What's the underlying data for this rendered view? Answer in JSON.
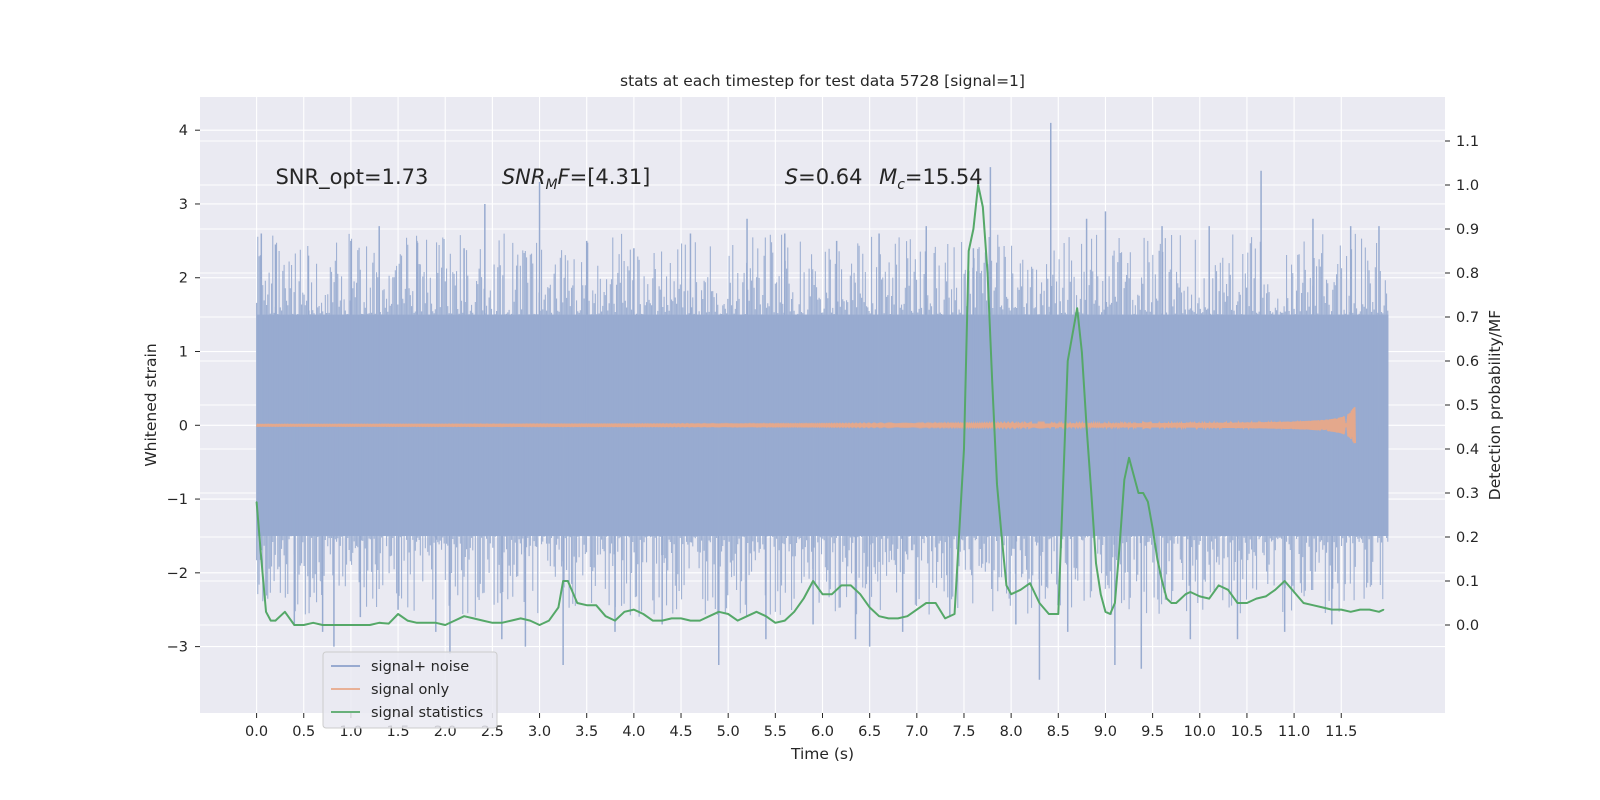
{
  "chart_data": {
    "type": "line",
    "title": "stats at each timestep for test data 5728 [signal=1]",
    "xlabel": "Time (s)",
    "ylabel": "Whitened strain",
    "y2label": "Detection probability/MF",
    "xlim": [
      -0.6,
      12.6
    ],
    "ylim": [
      -3.9,
      4.45
    ],
    "y2lim": [
      -0.2,
      1.2
    ],
    "xticks": [
      0.0,
      0.5,
      1.0,
      1.5,
      2.0,
      2.5,
      3.0,
      3.5,
      4.0,
      4.5,
      5.0,
      5.5,
      6.0,
      6.5,
      7.0,
      7.5,
      8.0,
      8.5,
      9.0,
      9.5,
      10.0,
      10.5,
      11.0,
      11.5
    ],
    "xtick_labels": [
      "0.0",
      "0.5",
      "1.0",
      "1.5",
      "2.0",
      "2.5",
      "3.0",
      "3.5",
      "4.0",
      "4.5",
      "5.0",
      "5.5",
      "6.0",
      "6.5",
      "7.0",
      "7.5",
      "8.0",
      "8.5",
      "9.0",
      "9.5",
      "10.0",
      "10.5",
      "11.0",
      "11.5"
    ],
    "yticks": [
      -3,
      -2,
      -1,
      0,
      1,
      2,
      3,
      4
    ],
    "ytick_labels": [
      "−3",
      "−2",
      "−1",
      "0",
      "1",
      "2",
      "3",
      "4"
    ],
    "y2ticks": [
      0.0,
      0.1,
      0.2,
      0.3,
      0.4,
      0.5,
      0.6,
      0.7,
      0.8,
      0.9,
      1.0,
      1.1
    ],
    "y2tick_labels": [
      "0.0",
      "0.1",
      "0.2",
      "0.3",
      "0.4",
      "0.5",
      "0.6",
      "0.7",
      "0.8",
      "0.9",
      "1.0",
      "1.1"
    ],
    "annotations": [
      {
        "parts": [
          {
            "t": "SNR_opt=1.73",
            "s": "normal"
          }
        ],
        "x": 0.2,
        "y2": 1.0
      },
      {
        "parts": [
          {
            "t": "SNR",
            "s": "italic"
          },
          {
            "t": "M",
            "s": "sub-italic"
          },
          {
            "t": "F",
            "s": "italic"
          },
          {
            "t": "=[4.31]",
            "s": "normal"
          }
        ],
        "x": 2.6,
        "y2": 1.0
      },
      {
        "parts": [
          {
            "t": "S",
            "s": "italic"
          },
          {
            "t": "=0.64",
            "s": "normal"
          }
        ],
        "x": 5.6,
        "y2": 1.0
      },
      {
        "parts": [
          {
            "t": "M",
            "s": "italic"
          },
          {
            "t": "c",
            "s": "sub-italic"
          },
          {
            "t": "=15.54",
            "s": "normal"
          }
        ],
        "x": 6.6,
        "y2": 1.0
      }
    ],
    "legend": {
      "location": "lower-left",
      "entries": [
        {
          "label": "signal+ noise",
          "color": "#8da0cb"
        },
        {
          "label": "signal only",
          "color": "#e8a888"
        },
        {
          "label": "signal statistics",
          "color": "#55a868"
        }
      ]
    },
    "series": [
      {
        "name": "signal+ noise",
        "axis": "left",
        "color": "#98abd0",
        "kind": "noise",
        "x_range": [
          0.0,
          12.0
        ],
        "core_band": [
          -1.5,
          1.5
        ],
        "spikes": [
          {
            "x": 0.05,
            "y": 2.6
          },
          {
            "x": 0.2,
            "y": 2.45
          },
          {
            "x": 0.4,
            "y": -2.7
          },
          {
            "x": 0.55,
            "y": 2.3
          },
          {
            "x": 0.7,
            "y": -2.8
          },
          {
            "x": 0.82,
            "y": -3.0
          },
          {
            "x": 1.0,
            "y": 2.5
          },
          {
            "x": 1.1,
            "y": -2.6
          },
          {
            "x": 1.3,
            "y": 2.7
          },
          {
            "x": 1.5,
            "y": -2.5
          },
          {
            "x": 1.7,
            "y": 2.5
          },
          {
            "x": 1.9,
            "y": -2.8
          },
          {
            "x": 2.05,
            "y": -3.1
          },
          {
            "x": 2.2,
            "y": 2.4
          },
          {
            "x": 2.42,
            "y": 3.0
          },
          {
            "x": 2.6,
            "y": -2.9
          },
          {
            "x": 2.85,
            "y": -3.0
          },
          {
            "x": 3.0,
            "y": 3.3
          },
          {
            "x": 3.25,
            "y": -3.25
          },
          {
            "x": 3.5,
            "y": 2.5
          },
          {
            "x": 3.8,
            "y": -2.8
          },
          {
            "x": 4.0,
            "y": 2.4
          },
          {
            "x": 4.3,
            "y": -2.7
          },
          {
            "x": 4.6,
            "y": 2.6
          },
          {
            "x": 4.9,
            "y": -3.25
          },
          {
            "x": 5.2,
            "y": 2.8
          },
          {
            "x": 5.4,
            "y": -2.9
          },
          {
            "x": 5.6,
            "y": 2.6
          },
          {
            "x": 5.9,
            "y": -2.7
          },
          {
            "x": 6.15,
            "y": 2.5
          },
          {
            "x": 6.35,
            "y": -2.9
          },
          {
            "x": 6.5,
            "y": -3.0
          },
          {
            "x": 6.6,
            "y": 2.6
          },
          {
            "x": 6.85,
            "y": -2.8
          },
          {
            "x": 7.1,
            "y": 2.7
          },
          {
            "x": 7.35,
            "y": -2.6
          },
          {
            "x": 7.6,
            "y": 2.4
          },
          {
            "x": 7.78,
            "y": 3.5
          },
          {
            "x": 8.05,
            "y": -2.7
          },
          {
            "x": 8.3,
            "y": -3.45
          },
          {
            "x": 8.42,
            "y": 4.1
          },
          {
            "x": 8.6,
            "y": -2.8
          },
          {
            "x": 8.8,
            "y": 2.8
          },
          {
            "x": 9.0,
            "y": 2.9
          },
          {
            "x": 9.1,
            "y": -3.25
          },
          {
            "x": 9.38,
            "y": -3.3
          },
          {
            "x": 9.6,
            "y": 2.7
          },
          {
            "x": 9.9,
            "y": -2.9
          },
          {
            "x": 10.1,
            "y": 2.7
          },
          {
            "x": 10.4,
            "y": -2.9
          },
          {
            "x": 10.65,
            "y": 3.45
          },
          {
            "x": 10.9,
            "y": -2.8
          },
          {
            "x": 11.2,
            "y": 2.8
          },
          {
            "x": 11.4,
            "y": -2.7
          },
          {
            "x": 11.6,
            "y": 2.7
          },
          {
            "x": 11.9,
            "y": 2.7
          }
        ]
      },
      {
        "name": "signal only",
        "axis": "left",
        "color": "#e8a888",
        "kind": "chirp",
        "x_range": [
          0.0,
          11.65
        ],
        "peak_amplitude": 0.25
      },
      {
        "name": "signal statistics",
        "axis": "right",
        "color": "#55a868",
        "kind": "line",
        "x": [
          0.0,
          0.05,
          0.1,
          0.15,
          0.2,
          0.3,
          0.4,
          0.5,
          0.6,
          0.7,
          0.8,
          0.9,
          1.0,
          1.1,
          1.2,
          1.3,
          1.4,
          1.5,
          1.6,
          1.7,
          1.8,
          1.9,
          2.0,
          2.1,
          2.2,
          2.3,
          2.4,
          2.5,
          2.6,
          2.7,
          2.8,
          2.9,
          3.0,
          3.1,
          3.2,
          3.25,
          3.3,
          3.4,
          3.5,
          3.6,
          3.7,
          3.8,
          3.9,
          4.0,
          4.1,
          4.2,
          4.3,
          4.4,
          4.5,
          4.6,
          4.7,
          4.8,
          4.9,
          5.0,
          5.1,
          5.2,
          5.3,
          5.4,
          5.5,
          5.6,
          5.7,
          5.8,
          5.9,
          6.0,
          6.1,
          6.2,
          6.3,
          6.4,
          6.5,
          6.6,
          6.7,
          6.8,
          6.9,
          7.0,
          7.1,
          7.2,
          7.3,
          7.4,
          7.5,
          7.55,
          7.6,
          7.65,
          7.7,
          7.75,
          7.8,
          7.85,
          7.9,
          7.95,
          8.0,
          8.1,
          8.2,
          8.3,
          8.4,
          8.5,
          8.6,
          8.7,
          8.75,
          8.8,
          8.85,
          8.9,
          8.95,
          9.0,
          9.05,
          9.1,
          9.15,
          9.2,
          9.25,
          9.3,
          9.35,
          9.4,
          9.45,
          9.5,
          9.55,
          9.6,
          9.65,
          9.7,
          9.75,
          9.8,
          9.85,
          9.9,
          10.0,
          10.1,
          10.2,
          10.3,
          10.4,
          10.5,
          10.6,
          10.7,
          10.8,
          10.9,
          11.0,
          11.1,
          11.2,
          11.3,
          11.4,
          11.5,
          11.6,
          11.7,
          11.8,
          11.9,
          11.95
        ],
        "y": [
          0.28,
          0.15,
          0.03,
          0.01,
          0.01,
          0.03,
          0.0,
          0.0,
          0.005,
          0.0,
          0.0,
          0.0,
          0.0,
          0.0,
          0.0,
          0.005,
          0.003,
          0.025,
          0.01,
          0.005,
          0.005,
          0.005,
          0.0,
          0.01,
          0.02,
          0.015,
          0.01,
          0.005,
          0.005,
          0.01,
          0.015,
          0.01,
          0.0,
          0.01,
          0.04,
          0.1,
          0.1,
          0.05,
          0.045,
          0.045,
          0.02,
          0.01,
          0.03,
          0.035,
          0.025,
          0.01,
          0.01,
          0.015,
          0.015,
          0.01,
          0.01,
          0.02,
          0.03,
          0.025,
          0.01,
          0.02,
          0.03,
          0.02,
          0.005,
          0.01,
          0.03,
          0.06,
          0.1,
          0.07,
          0.07,
          0.09,
          0.09,
          0.07,
          0.04,
          0.02,
          0.015,
          0.015,
          0.02,
          0.035,
          0.05,
          0.05,
          0.015,
          0.025,
          0.4,
          0.85,
          0.9,
          1.0,
          0.95,
          0.8,
          0.55,
          0.32,
          0.2,
          0.09,
          0.07,
          0.08,
          0.095,
          0.05,
          0.025,
          0.025,
          0.6,
          0.72,
          0.62,
          0.45,
          0.3,
          0.14,
          0.07,
          0.03,
          0.025,
          0.05,
          0.18,
          0.33,
          0.38,
          0.34,
          0.3,
          0.3,
          0.28,
          0.22,
          0.15,
          0.1,
          0.06,
          0.05,
          0.05,
          0.06,
          0.07,
          0.075,
          0.065,
          0.06,
          0.09,
          0.08,
          0.05,
          0.05,
          0.06,
          0.065,
          0.08,
          0.1,
          0.075,
          0.05,
          0.045,
          0.04,
          0.035,
          0.035,
          0.03,
          0.035,
          0.035,
          0.03,
          0.035
        ]
      }
    ]
  }
}
